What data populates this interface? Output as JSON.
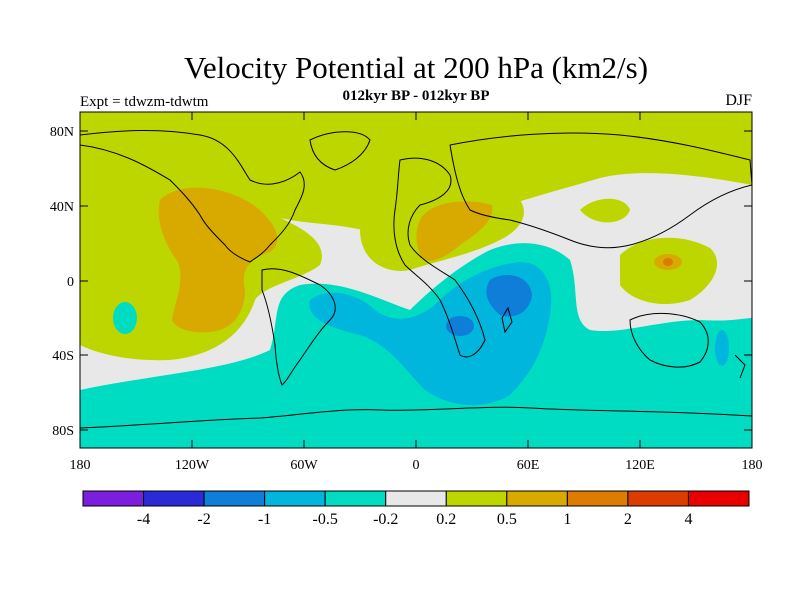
{
  "title": "Velocity Potential at 200 hPa (km2/s)",
  "subtitle": "012kyr BP - 012kyr BP",
  "left_label": "Expt = tdwzm-tdwtm",
  "right_label": "DJF",
  "lat_ticks": [
    "80N",
    "40N",
    "0",
    "40S",
    "80S"
  ],
  "lon_ticks": [
    "180",
    "120W",
    "60W",
    "0",
    "60E",
    "120E",
    "180"
  ],
  "colorbar": {
    "colors": [
      "#7c1fdc",
      "#2a2ad6",
      "#0f7ed8",
      "#00b6dc",
      "#00dcc2",
      "#e8e8e8",
      "#bed600",
      "#d8aa00",
      "#dc7c00",
      "#dc3c00",
      "#e80000"
    ],
    "labels": [
      "-4",
      "-2",
      "-1",
      "-0.5",
      "-0.2",
      "0.2",
      "0.5",
      "1",
      "2",
      "4"
    ]
  }
}
